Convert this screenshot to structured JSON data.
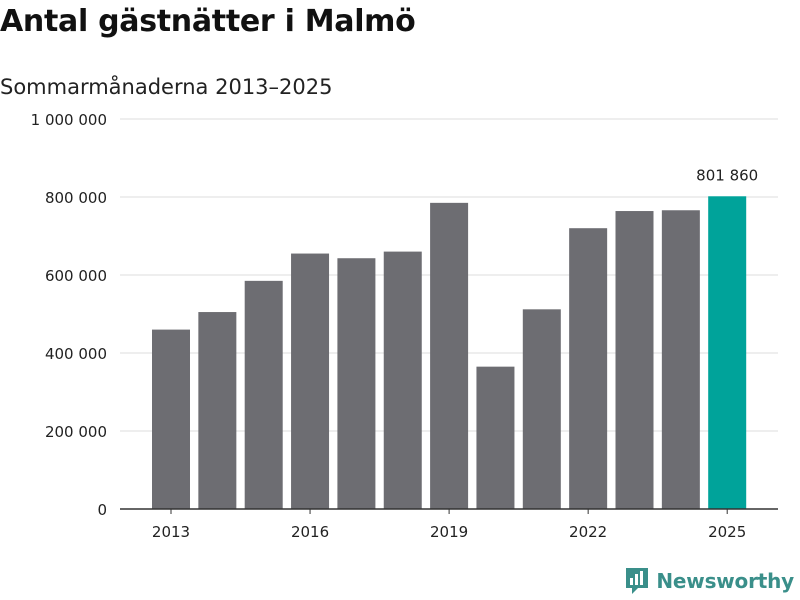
{
  "title": "Antal gästnätter i Malmö",
  "subtitle": "Sommarmånaderna 2013–2025",
  "brand": {
    "label": "Newsworthy",
    "icon": "newsworthy-logo-icon",
    "color": "#3a8f8a"
  },
  "colors": {
    "bar": "#6d6d72",
    "highlight": "#00a39a",
    "grid": "#dcdcdc",
    "axis": "#333333"
  },
  "chart_data": {
    "type": "bar",
    "categories": [
      "2013",
      "2014",
      "2015",
      "2016",
      "2017",
      "2018",
      "2019",
      "2020",
      "2021",
      "2022",
      "2023",
      "2024",
      "2025"
    ],
    "values": [
      460000,
      505000,
      585000,
      655000,
      643000,
      660000,
      785000,
      365000,
      512000,
      720000,
      764000,
      766000,
      801860
    ],
    "x_tick_labels": [
      "2013",
      "2016",
      "2019",
      "2022",
      "2025"
    ],
    "y_ticks": [
      0,
      200000,
      400000,
      600000,
      800000,
      1000000
    ],
    "y_tick_labels": [
      "0",
      "200 000",
      "400 000",
      "600 000",
      "800 000",
      "1 000 000"
    ],
    "ylim": [
      0,
      1000000
    ],
    "highlight_category": "2025",
    "data_labels": [
      {
        "category": "2025",
        "text": "801 860"
      }
    ],
    "grid": true
  }
}
